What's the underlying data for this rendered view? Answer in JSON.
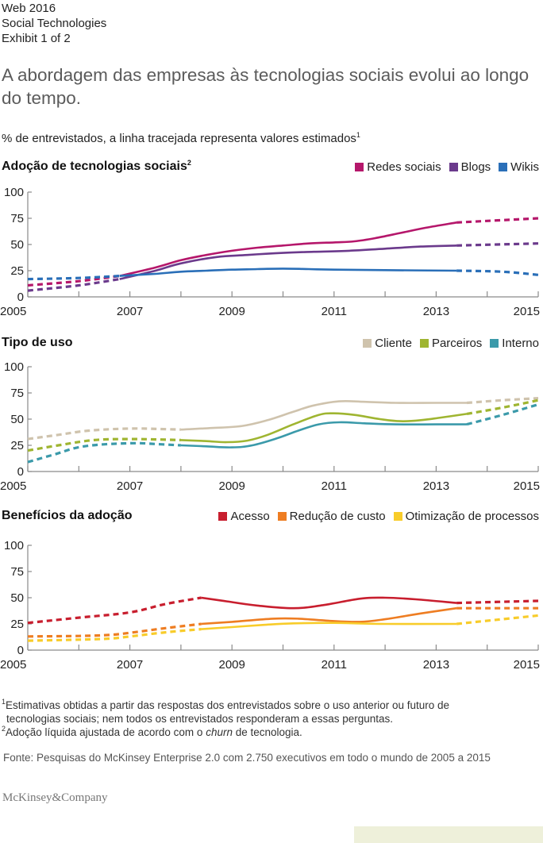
{
  "header": {
    "meta_lines": [
      "Web 2016",
      "Social Technologies",
      "Exhibit 1 of 2"
    ],
    "title": "A abordagem das empresas às tecnologias sociais evolui ao longo do tempo.",
    "subtitle": "% de entrevistados, a linha tracejada representa valores estimados",
    "subtitle_sup": "1"
  },
  "chart_data": [
    {
      "type": "line",
      "title": "Adoção de tecnologias sociais",
      "title_sup": "2",
      "xlabel": "",
      "ylabel": "",
      "xlim": [
        2005,
        2015
      ],
      "ylim": [
        0,
        100
      ],
      "xticks": [
        2005,
        2006,
        2007,
        2008,
        2009,
        2010,
        2011,
        2012,
        2013,
        2014,
        2015
      ],
      "xtick_labels": [
        "2005",
        "2007",
        "2009",
        "2011",
        "2013",
        "2015"
      ],
      "yticks": [
        0,
        25,
        50,
        75,
        100
      ],
      "ytick_labels": [
        "0",
        "25",
        "50",
        "75",
        "100"
      ],
      "legend_position": "top-right",
      "series": [
        {
          "name": "Redes sociais",
          "color": "#b5176b",
          "estimated_before": [
            [
              2005,
              11
            ],
            [
              2006,
              15
            ],
            [
              2006.8,
              20
            ]
          ],
          "actual": [
            [
              2006.8,
              20
            ],
            [
              2007.5,
              28
            ],
            [
              2008,
              35
            ],
            [
              2008.5,
              40
            ],
            [
              2009,
              44
            ],
            [
              2009.5,
              47
            ],
            [
              2010,
              49
            ],
            [
              2010.5,
              51
            ],
            [
              2011,
              52
            ],
            [
              2011.4,
              53
            ],
            [
              2011.8,
              56
            ],
            [
              2012.3,
              61
            ],
            [
              2012.8,
              66
            ],
            [
              2013.4,
              71
            ]
          ],
          "estimated_after": [
            [
              2013.4,
              71
            ],
            [
              2015,
              75
            ]
          ]
        },
        {
          "name": "Blogs",
          "color": "#6b3a8c",
          "estimated_before": [
            [
              2005,
              6
            ],
            [
              2006,
              11
            ],
            [
              2006.8,
              17
            ]
          ],
          "actual": [
            [
              2006.8,
              17
            ],
            [
              2007.5,
              25
            ],
            [
              2008,
              32
            ],
            [
              2008.7,
              38
            ],
            [
              2009.3,
              40
            ],
            [
              2010,
              42
            ],
            [
              2010.6,
              43
            ],
            [
              2011.3,
              44
            ],
            [
              2012,
              46
            ],
            [
              2012.7,
              48
            ],
            [
              2013.4,
              49
            ]
          ],
          "estimated_after": [
            [
              2013.4,
              49
            ],
            [
              2015,
              51
            ]
          ]
        },
        {
          "name": "Wikis",
          "color": "#2a6fb8",
          "estimated_before": [
            [
              2005,
              17
            ],
            [
              2006,
              18
            ],
            [
              2006.8,
              20
            ]
          ],
          "actual": [
            [
              2006.8,
              20
            ],
            [
              2007.5,
              22
            ],
            [
              2008,
              24
            ],
            [
              2008.5,
              25
            ],
            [
              2009,
              26
            ],
            [
              2009.5,
              26.5
            ],
            [
              2010,
              27
            ],
            [
              2010.5,
              26.5
            ],
            [
              2011,
              26
            ],
            [
              2012,
              25.5
            ],
            [
              2013.4,
              25
            ]
          ],
          "estimated_after": [
            [
              2013.4,
              25
            ],
            [
              2014.3,
              24
            ],
            [
              2015,
              21
            ]
          ]
        }
      ]
    },
    {
      "type": "line",
      "title": "Tipo de uso",
      "xlabel": "",
      "ylabel": "",
      "xlim": [
        2005,
        2015
      ],
      "ylim": [
        0,
        100
      ],
      "xticks": [
        2005,
        2006,
        2007,
        2008,
        2009,
        2010,
        2011,
        2012,
        2013,
        2014,
        2015
      ],
      "xtick_labels": [
        "2005",
        "2007",
        "2009",
        "2011",
        "2013",
        "2015"
      ],
      "yticks": [
        0,
        25,
        50,
        75,
        100
      ],
      "ytick_labels": [
        "0",
        "25",
        "50",
        "75",
        "100"
      ],
      "legend_position": "top-right",
      "series": [
        {
          "name": "Cliente",
          "color": "#cfc3ad",
          "estimated_before": [
            [
              2005,
              31
            ],
            [
              2005.6,
              35
            ],
            [
              2006.2,
              39
            ],
            [
              2007,
              41
            ],
            [
              2007.6,
              40.5
            ],
            [
              2008,
              40
            ]
          ],
          "actual": [
            [
              2008,
              40
            ],
            [
              2008.6,
              41.5
            ],
            [
              2009.2,
              43.5
            ],
            [
              2009.7,
              49
            ],
            [
              2010.2,
              57
            ],
            [
              2010.6,
              63
            ],
            [
              2011.1,
              67
            ],
            [
              2011.6,
              66.5
            ],
            [
              2012.2,
              65.5
            ],
            [
              2013,
              65.5
            ],
            [
              2013.6,
              65.5
            ]
          ],
          "estimated_after": [
            [
              2013.6,
              65.5
            ],
            [
              2014.3,
              68
            ],
            [
              2015,
              70
            ]
          ]
        },
        {
          "name": "Parceiros",
          "color": "#9fb531",
          "estimated_before": [
            [
              2005,
              20
            ],
            [
              2005.6,
              25
            ],
            [
              2006.3,
              30
            ],
            [
              2007,
              31
            ],
            [
              2007.6,
              30.5
            ],
            [
              2008,
              30
            ]
          ],
          "actual": [
            [
              2008,
              30
            ],
            [
              2008.5,
              29
            ],
            [
              2008.9,
              28
            ],
            [
              2009.3,
              29.5
            ],
            [
              2009.7,
              35
            ],
            [
              2010.2,
              45
            ],
            [
              2010.7,
              54
            ],
            [
              2011,
              55.5
            ],
            [
              2011.4,
              54
            ],
            [
              2011.9,
              50
            ],
            [
              2012.3,
              48
            ],
            [
              2012.7,
              49
            ],
            [
              2013.1,
              51.5
            ],
            [
              2013.6,
              55
            ]
          ],
          "estimated_after": [
            [
              2013.6,
              55
            ],
            [
              2014.3,
              61
            ],
            [
              2015,
              68
            ]
          ]
        },
        {
          "name": "Interno",
          "color": "#3b9aaa",
          "estimated_before": [
            [
              2005,
              9
            ],
            [
              2005.5,
              16
            ],
            [
              2006.1,
              24
            ],
            [
              2007,
              27
            ],
            [
              2007.6,
              26
            ],
            [
              2008,
              25
            ]
          ],
          "actual": [
            [
              2008,
              25
            ],
            [
              2008.5,
              24
            ],
            [
              2009,
              23
            ],
            [
              2009.4,
              25
            ],
            [
              2009.9,
              32
            ],
            [
              2010.3,
              39
            ],
            [
              2010.7,
              45
            ],
            [
              2011.1,
              47
            ],
            [
              2011.6,
              46
            ],
            [
              2012.2,
              45
            ],
            [
              2013,
              45
            ],
            [
              2013.6,
              45
            ]
          ],
          "estimated_after": [
            [
              2013.6,
              45
            ],
            [
              2014.3,
              54
            ],
            [
              2015,
              64
            ]
          ]
        }
      ]
    },
    {
      "type": "line",
      "title": "Benefícios da adoção",
      "xlabel": "",
      "ylabel": "",
      "xlim": [
        2005,
        2015
      ],
      "ylim": [
        0,
        100
      ],
      "xticks": [
        2005,
        2006,
        2007,
        2008,
        2009,
        2010,
        2011,
        2012,
        2013,
        2014,
        2015
      ],
      "xtick_labels": [
        "2005",
        "2007",
        "2009",
        "2011",
        "2013",
        "2015"
      ],
      "yticks": [
        0,
        25,
        50,
        75,
        100
      ],
      "ytick_labels": [
        "0",
        "25",
        "50",
        "75",
        "100"
      ],
      "legend_position": "top-right",
      "series": [
        {
          "name": "Acesso",
          "color": "#c81e2e",
          "estimated_before": [
            [
              2005,
              26
            ],
            [
              2006,
              31
            ],
            [
              2007,
              36
            ],
            [
              2007.7,
              44
            ],
            [
              2008.4,
              50
            ]
          ],
          "actual": [
            [
              2008.4,
              50
            ],
            [
              2008.9,
              46.5
            ],
            [
              2009.5,
              42.5
            ],
            [
              2010.2,
              40
            ],
            [
              2010.8,
              43
            ],
            [
              2011.5,
              49
            ],
            [
              2012,
              50
            ],
            [
              2012.6,
              48.5
            ],
            [
              2013.4,
              45
            ]
          ],
          "estimated_after": [
            [
              2013.4,
              45
            ],
            [
              2015,
              47
            ]
          ]
        },
        {
          "name": "Redução de custo",
          "color": "#ee7d22",
          "estimated_before": [
            [
              2005,
              13
            ],
            [
              2006,
              13.5
            ],
            [
              2006.6,
              14.5
            ],
            [
              2007,
              16.5
            ],
            [
              2007.7,
              21
            ],
            [
              2008.4,
              25
            ]
          ],
          "actual": [
            [
              2008.4,
              25
            ],
            [
              2009,
              27
            ],
            [
              2009.8,
              30
            ],
            [
              2010.3,
              30
            ],
            [
              2010.9,
              28
            ],
            [
              2011.5,
              27
            ],
            [
              2012,
              29.5
            ],
            [
              2012.7,
              35
            ],
            [
              2013.4,
              40
            ]
          ],
          "estimated_after": [
            [
              2013.4,
              40
            ],
            [
              2015,
              40
            ]
          ]
        },
        {
          "name": "Otimização de processos",
          "color": "#f8cc2a",
          "estimated_before": [
            [
              2005,
              9
            ],
            [
              2006,
              10
            ],
            [
              2006.6,
              11
            ],
            [
              2007,
              13
            ],
            [
              2007.7,
              17
            ],
            [
              2008.4,
              20
            ]
          ],
          "actual": [
            [
              2008.4,
              20
            ],
            [
              2009,
              22
            ],
            [
              2009.6,
              24
            ],
            [
              2010.2,
              25.5
            ],
            [
              2011,
              26
            ],
            [
              2012,
              25
            ],
            [
              2013.4,
              25
            ]
          ],
          "estimated_after": [
            [
              2013.4,
              25
            ],
            [
              2014.2,
              29
            ],
            [
              2015,
              33
            ]
          ]
        }
      ]
    }
  ],
  "footnotes": {
    "note1_marker": "1",
    "note1": "Estimativas obtidas a partir das respostas dos entrevistados sobre o uso anterior ou futuro de",
    "note1_cont": "tecnologias sociais; nem todos os entrevistados responderam a essas perguntas.",
    "note2_marker": "2",
    "note2_pre": "Adoção líquida ajustada de acordo com o ",
    "note2_italic": "churn",
    "note2_post": " de tecnologia."
  },
  "source": "Fonte: Pesquisas do McKinsey Enterprise 2.0 com 2.750 executivos em todo o mundo de 2005 a 2015",
  "logo": "McKinsey&Company"
}
